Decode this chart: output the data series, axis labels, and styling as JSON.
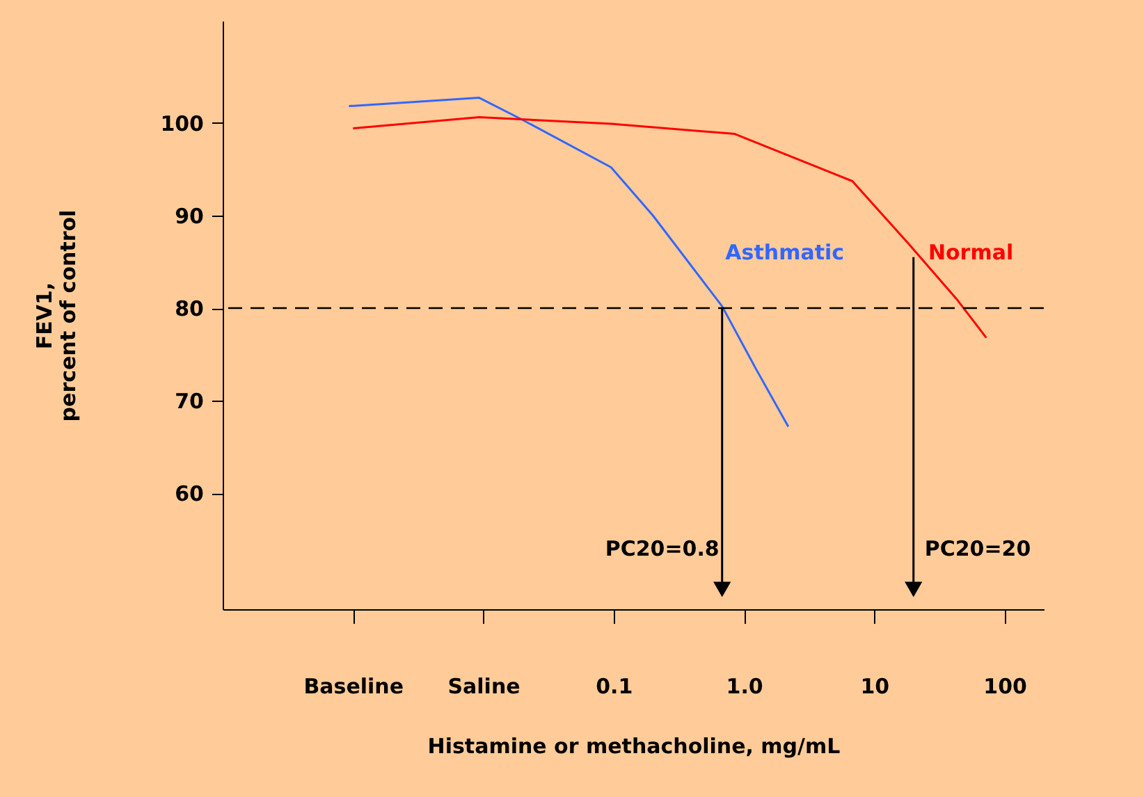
{
  "chart_data": {
    "type": "line",
    "xlabel": "Histamine or methacholine, mg/mL",
    "ylabel": "FEV1,\npercent of control",
    "log": "x",
    "xlim": [
      0.0001,
      200
    ],
    "xticks": [
      {
        "value": 0.001,
        "label": "Baseline"
      },
      {
        "value": 0.01,
        "label": "Saline"
      },
      0.1,
      {
        "value": 1,
        "label": "1.0"
      },
      10,
      100
    ],
    "ylim": [
      47.5,
      111
    ],
    "yticks": [
      60,
      70,
      80,
      90,
      100
    ],
    "series": [
      {
        "name": "Asthmatic",
        "color": "#3366ff",
        "x": [
          0.00093,
          0.0093,
          0.0195,
          0.0955,
          0.2,
          0.68,
          1.23,
          2.19
        ],
        "values": [
          101.8,
          102.7,
          100.4,
          95.2,
          90,
          80.2,
          73.5,
          67.2
        ]
      },
      {
        "name": "Normal",
        "color": "#ff0000",
        "x": [
          0.001,
          0.0093,
          0.0955,
          0.85,
          6.8,
          18.2,
          42.7,
          72.4
        ],
        "values": [
          99.4,
          100.6,
          99.9,
          98.8,
          93.7,
          87,
          81,
          76.8
        ]
      }
    ],
    "ref_lines": [
      {
        "axis": "y",
        "value": 80,
        "line_style": "dashed",
        "color": "#000000"
      }
    ],
    "annotations": [
      {
        "text": "PC20=0.8",
        "x": 0.68,
        "y": 80
      },
      {
        "text": "PC20=20",
        "x": 20,
        "y": 85.5
      }
    ],
    "grid": false,
    "marker": "none",
    "line_style": "solid"
  }
}
